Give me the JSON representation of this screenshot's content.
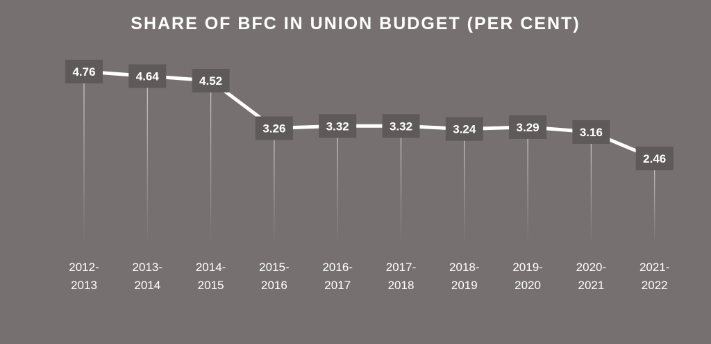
{
  "chart_data": {
    "type": "line",
    "title": "SHARE OF BFC IN UNION BUDGET (PER CENT)",
    "categories": [
      "2012-2013",
      "2013-2014",
      "2014-2015",
      "2015-2016",
      "2016-2017",
      "2017-2018",
      "2018-2019",
      "2019-2020",
      "2020-2021",
      "2021-2022"
    ],
    "category_lines": [
      [
        "2012-",
        "2013"
      ],
      [
        "2013-",
        "2014"
      ],
      [
        "2014-",
        "2015"
      ],
      [
        "2015-",
        "2016"
      ],
      [
        "2016-",
        "2017"
      ],
      [
        "2017-",
        "2018"
      ],
      [
        "2018-",
        "2019"
      ],
      [
        "2019-",
        "2020"
      ],
      [
        "2020-",
        "2021"
      ],
      [
        "2021-",
        "2022"
      ]
    ],
    "series": [
      {
        "values": [
          4.76,
          4.64,
          4.52,
          3.26,
          3.32,
          3.32,
          3.24,
          3.29,
          3.16,
          2.46
        ],
        "labels": [
          "4.76",
          "4.64",
          "4.52",
          "3.26",
          "3.32",
          "3.32",
          "3.24",
          "3.29",
          "3.16",
          "2.46"
        ]
      }
    ],
    "xlabel": "",
    "ylabel": "",
    "grid": false,
    "legend": "none",
    "colors": {
      "background": "#767170",
      "line": "#ffffff",
      "label_box": "#5e5a59",
      "drop_line": "#d9d9d9",
      "text": "#ffffff"
    }
  }
}
